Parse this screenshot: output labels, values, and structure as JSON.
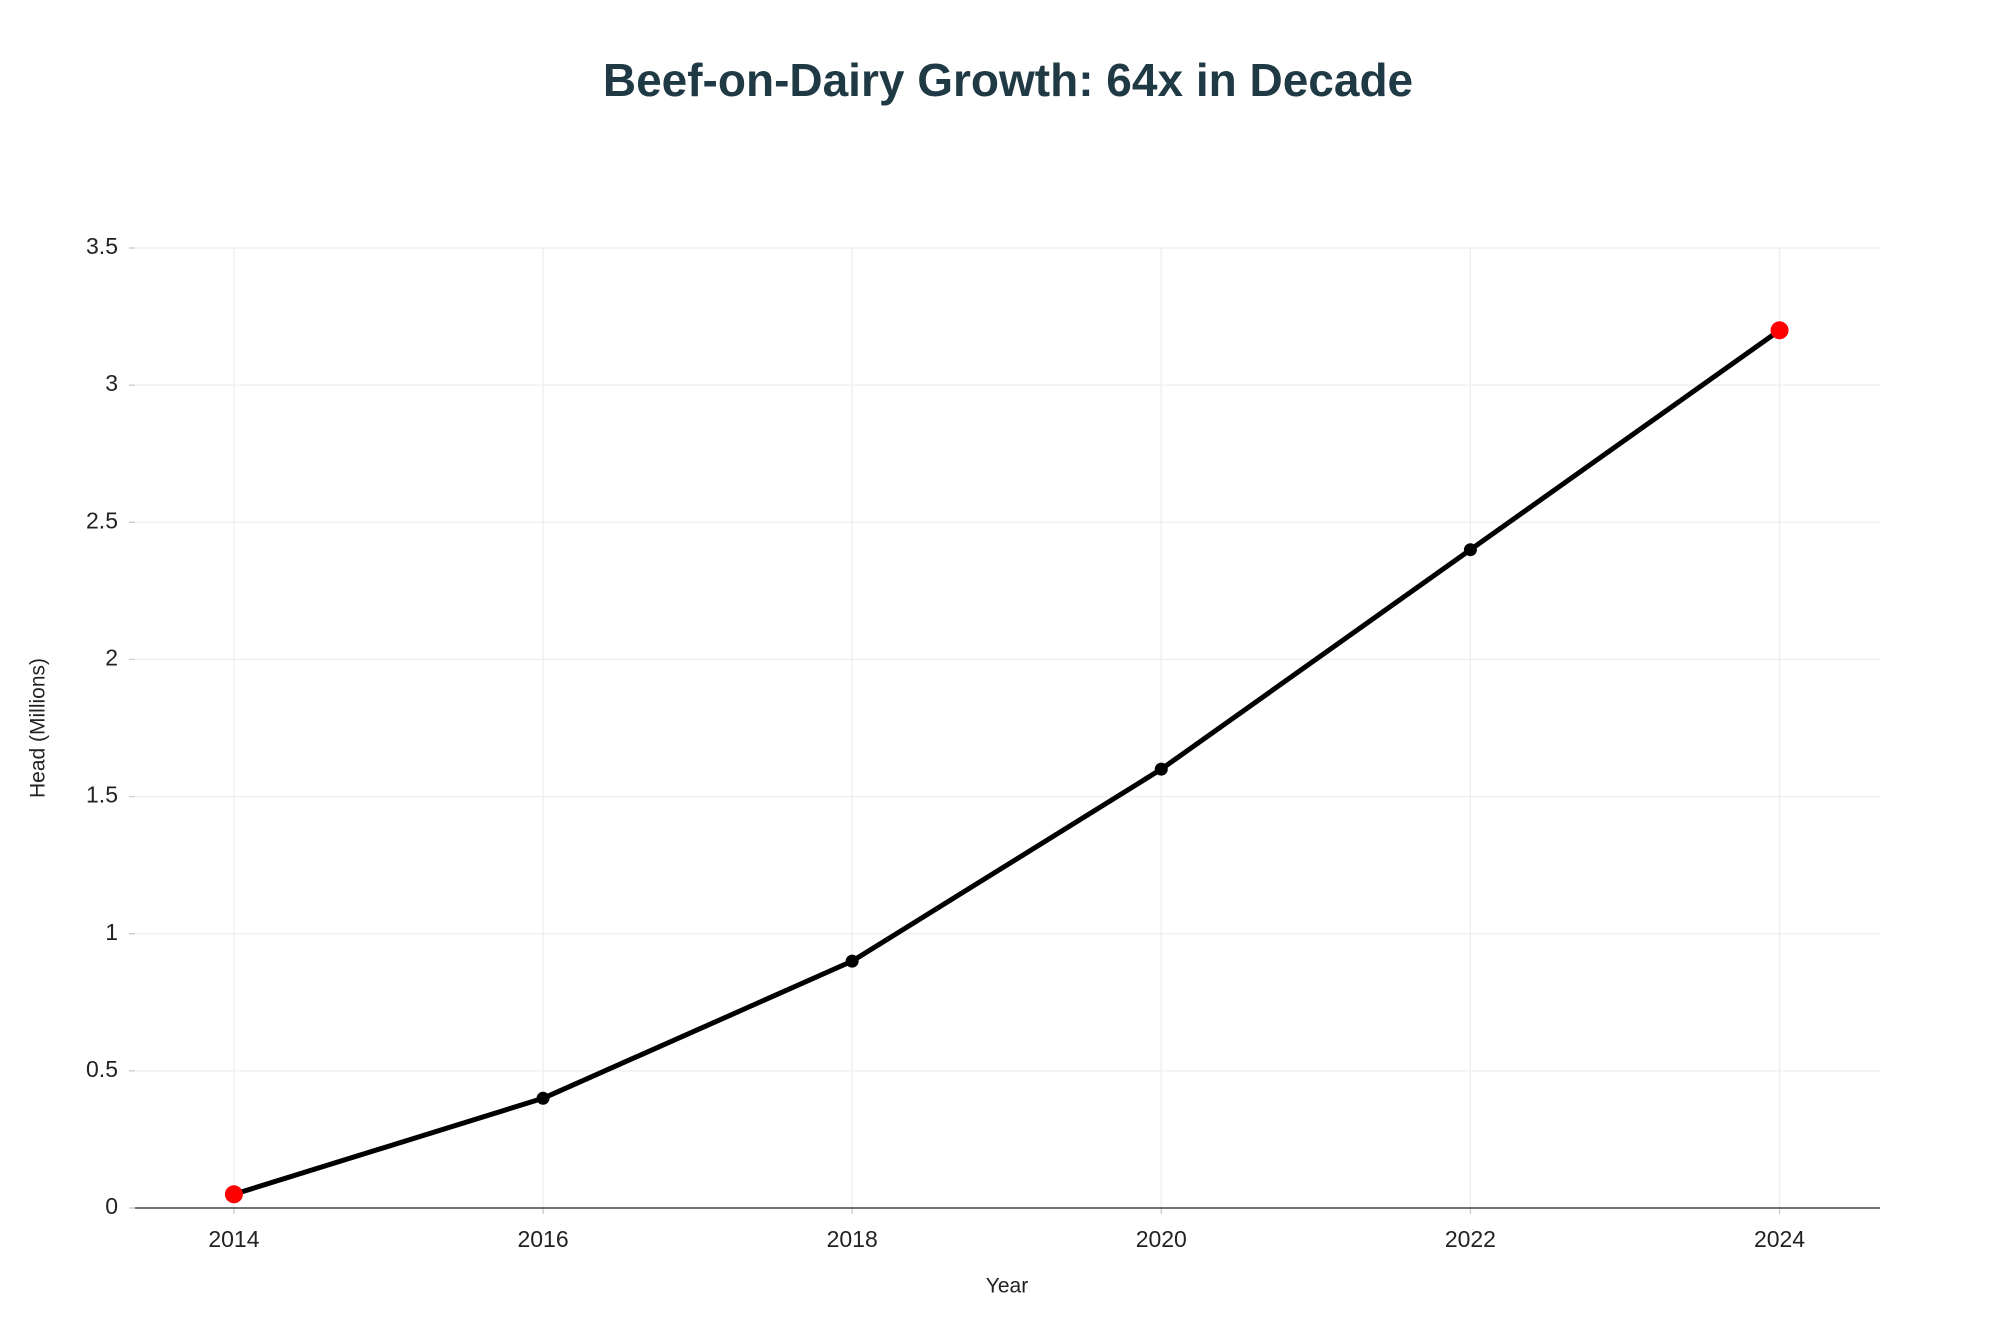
{
  "chart_data": {
    "type": "line",
    "title": "Beef-on-Dairy Growth: 64x in Decade",
    "x_label": "Year",
    "y_label": "Head (Millions)",
    "x": [
      2014,
      2016,
      2018,
      2020,
      2022,
      2024
    ],
    "series": [
      {
        "name": "Head (Millions)",
        "color": "#000000",
        "marker_colors": [
          "#ff0000",
          "#000000",
          "#000000",
          "#000000",
          "#000000",
          "#ff0000"
        ],
        "values": [
          0.05,
          0.4,
          0.9,
          1.6,
          2.4,
          3.2
        ]
      }
    ],
    "xlim": [
      2013.36,
      2024.65
    ],
    "xticks": [
      2014,
      2016,
      2018,
      2020,
      2022,
      2024
    ],
    "ylim": [
      0,
      3.5
    ],
    "yticks": [
      0,
      0.5,
      1,
      1.5,
      2,
      2.5,
      3,
      3.5
    ],
    "grid": true
  }
}
